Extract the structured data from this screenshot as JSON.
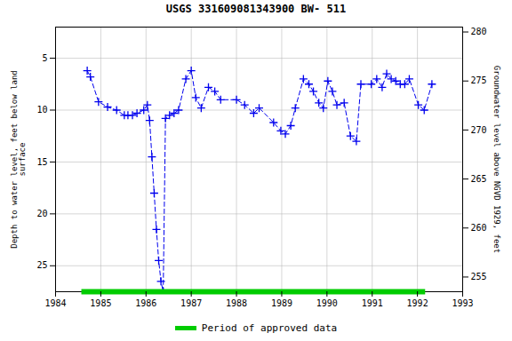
{
  "chart_data": {
    "type": "line",
    "title": "USGS 331609081343900 BW- 511",
    "ylabel": "Depth to water level, feet below land\nsurface",
    "y2label": "Groundwater level above NGVD 1929, feet",
    "x": [
      1984.7,
      1984.77,
      1984.95,
      1985.15,
      1985.35,
      1985.52,
      1985.6,
      1985.7,
      1985.8,
      1985.95,
      1986.03,
      1986.08,
      1986.13,
      1986.18,
      1986.23,
      1986.28,
      1986.33,
      1986.38,
      1986.43,
      1986.52,
      1986.62,
      1986.72,
      1986.88,
      1987.0,
      1987.1,
      1987.22,
      1987.38,
      1987.52,
      1987.65,
      1988.0,
      1988.18,
      1988.38,
      1988.5,
      1988.82,
      1988.98,
      1989.08,
      1989.2,
      1989.3,
      1989.48,
      1989.6,
      1989.7,
      1989.82,
      1989.92,
      1990.02,
      1990.12,
      1990.22,
      1990.38,
      1990.52,
      1990.65,
      1990.75,
      1990.98,
      1991.1,
      1991.22,
      1991.32,
      1991.42,
      1991.52,
      1991.62,
      1991.72,
      1991.82,
      1992.02,
      1992.15,
      1992.32
    ],
    "values": [
      6.2,
      6.8,
      9.2,
      9.7,
      10.0,
      10.5,
      10.5,
      10.5,
      10.3,
      10.0,
      9.5,
      11.0,
      14.5,
      18.0,
      21.5,
      24.5,
      26.5,
      27.5,
      10.8,
      10.5,
      10.3,
      10.0,
      7.0,
      6.2,
      8.8,
      9.8,
      7.8,
      8.2,
      9.0,
      9.0,
      9.5,
      10.3,
      9.8,
      11.2,
      12.0,
      12.3,
      11.5,
      9.8,
      7.0,
      7.5,
      8.2,
      9.3,
      9.8,
      7.2,
      8.2,
      9.5,
      9.3,
      12.5,
      13.0,
      7.5,
      7.5,
      7.0,
      7.8,
      6.5,
      7.0,
      7.2,
      7.5,
      7.5,
      7.0,
      9.5,
      10.0,
      7.5
    ],
    "color": "#0000ee",
    "line_style": "dashed",
    "marker": "plus",
    "xlim": [
      1984,
      1993
    ],
    "xticks": [
      1984,
      1985,
      1986,
      1987,
      1988,
      1989,
      1990,
      1991,
      1992,
      1993
    ],
    "ylim": [
      27.5,
      2.0
    ],
    "yticks": [
      5,
      10,
      15,
      20,
      25
    ],
    "y2lim": [
      253.5,
      280.5
    ],
    "y2ticks": [
      255,
      260,
      265,
      270,
      275,
      280
    ],
    "grid": true,
    "legend": "bottom",
    "approved_period": {
      "start": 1984.58,
      "end": 1992.18,
      "label": "Period of approved data",
      "color": "#00cc00"
    }
  }
}
